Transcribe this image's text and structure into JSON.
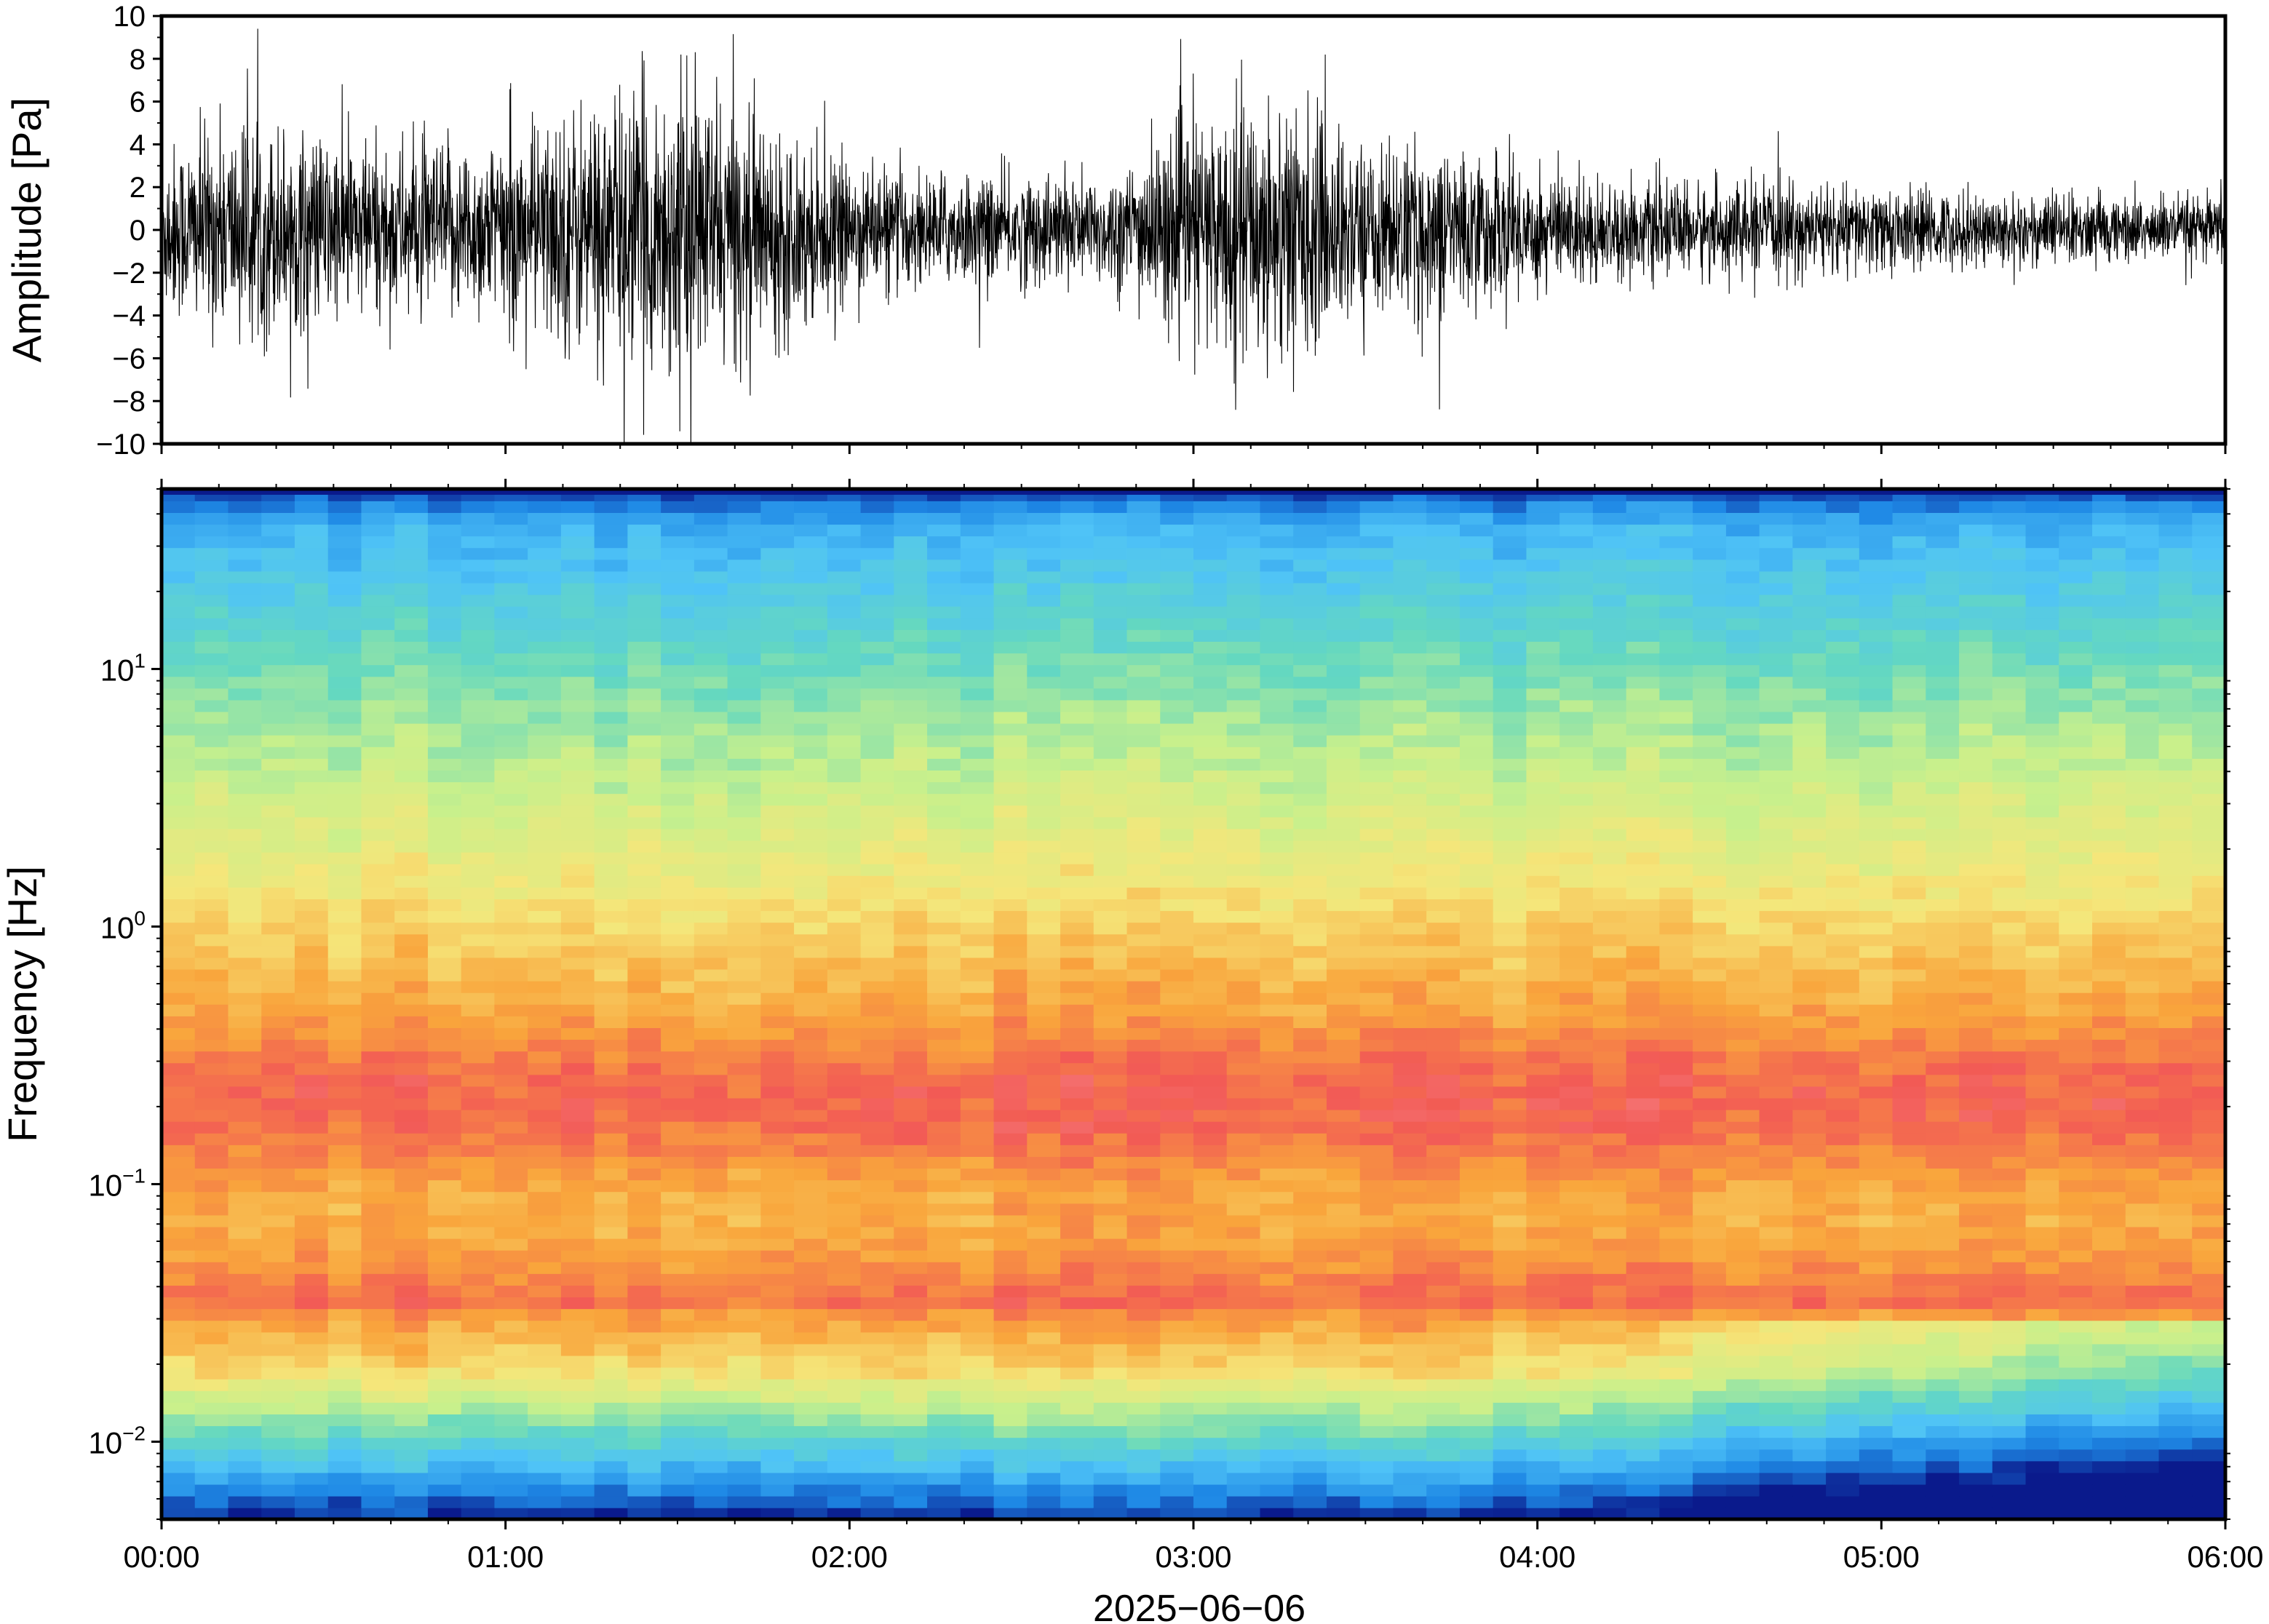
{
  "chart_data": [
    {
      "type": "line",
      "title": "",
      "xlabel": "",
      "ylabel": "Amplitude [Pa]",
      "xlim": [
        "00:00",
        "06:00"
      ],
      "ylim": [
        -10,
        10
      ],
      "yticks": [
        "10",
        "8",
        "6",
        "4",
        "2",
        "0",
        "−2",
        "−4",
        "−6",
        "−8",
        "−10"
      ],
      "yticks_values": [
        10,
        8,
        6,
        4,
        2,
        0,
        -2,
        -4,
        -6,
        -8,
        -10
      ],
      "grid": false,
      "series": [
        {
          "color": "#000000",
          "envelope_time_hours": [
            0.0,
            0.25,
            0.5,
            0.75,
            1.0,
            1.25,
            1.5,
            1.75,
            2.0,
            2.25,
            2.5,
            2.75,
            3.0,
            3.25,
            3.5,
            3.75,
            4.0,
            4.25,
            4.5,
            4.75,
            5.0,
            5.25,
            5.5,
            5.75,
            6.0
          ],
          "envelope_abs_amplitude_pa": [
            4.5,
            6.0,
            5.0,
            4.5,
            5.0,
            7.0,
            8.0,
            6.0,
            3.5,
            3.0,
            3.0,
            3.0,
            6.0,
            7.5,
            4.5,
            4.5,
            3.5,
            2.5,
            2.5,
            2.5,
            2.3,
            2.0,
            2.0,
            1.8,
            1.8
          ]
        }
      ]
    },
    {
      "type": "heatmap",
      "title": "",
      "xlabel": "2025−06−06",
      "ylabel": "Frequency [Hz]",
      "xlim": [
        "00:00",
        "06:00"
      ],
      "yscale": "log",
      "ylim": [
        0.005,
        50
      ],
      "xticks": [
        "00:00",
        "01:00",
        "02:00",
        "03:00",
        "04:00",
        "05:00",
        "06:00"
      ],
      "yticks": [
        {
          "base": "10",
          "exp": "1",
          "value": 10
        },
        {
          "base": "10",
          "exp": "0",
          "value": 1
        },
        {
          "base": "10",
          "exp": "−1",
          "value": 0.1
        },
        {
          "base": "10",
          "exp": "−2",
          "value": 0.01
        }
      ],
      "colormap": [
        "#0a1a8c",
        "#1e88e5",
        "#4fc3f7",
        "#64d8c0",
        "#c8f08c",
        "#f5e67a",
        "#f9a53c",
        "#f25a55",
        "#f8a0a8"
      ],
      "grid": false
    }
  ]
}
